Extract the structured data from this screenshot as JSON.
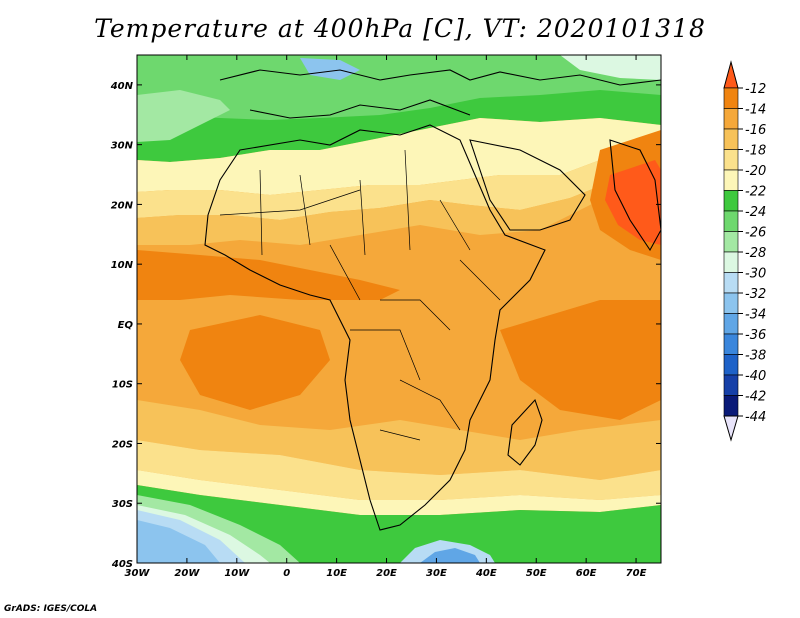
{
  "title": "Temperature at 400hPa [C], VT: 2020101318",
  "credit": "GrADS: IGES/COLA",
  "map": {
    "lon_range": [
      -30,
      75
    ],
    "lat_range": [
      -40,
      45
    ],
    "lon_labels": [
      "30W",
      "20W",
      "10W",
      "0",
      "10E",
      "20E",
      "30E",
      "40E",
      "50E",
      "60E",
      "70E"
    ],
    "lat_labels": [
      "40N",
      "30N",
      "20N",
      "10N",
      "EQ",
      "10S",
      "20S",
      "30S",
      "40S"
    ]
  },
  "colorbar": {
    "labels": [
      "-12",
      "-14",
      "-16",
      "-18",
      "-20",
      "-22",
      "-24",
      "-26",
      "-28",
      "-30",
      "-32",
      "-34",
      "-36",
      "-38",
      "-40",
      "-42",
      "-44"
    ],
    "colors": {
      "above_-12": "#ff5a1a",
      "-12_-14": "#f08410",
      "-14_-16": "#f5a83a",
      "-16_-18": "#f7c259",
      "-18_-20": "#fbe18c",
      "-20_-22": "#fdf6b8",
      "-22_-24": "#3ec93e",
      "-24_-26": "#6ed86e",
      "-26_-28": "#a3e8a3",
      "-28_-30": "#dcf8e2",
      "-30_-32": "#b8dcf4",
      "-32_-34": "#8cc4ee",
      "-34_-36": "#60a6e6",
      "-36_-38": "#3a86dc",
      "-38_-40": "#1e62c8",
      "-40_-42": "#1640a8",
      "-42_-44": "#0a1a78",
      "below_-44": "#e8e4fa"
    }
  }
}
